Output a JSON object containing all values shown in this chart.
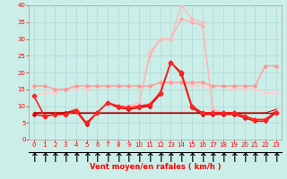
{
  "xlabel": "Vent moyen/en rafales ( km/h )",
  "bg_color": "#cceee8",
  "grid_color": "#b0ddd8",
  "xlim_min": -0.5,
  "xlim_max": 23.5,
  "ylim_min": 0,
  "ylim_max": 40,
  "yticks": [
    0,
    5,
    10,
    15,
    20,
    25,
    30,
    35,
    40
  ],
  "xticks": [
    0,
    1,
    2,
    3,
    4,
    5,
    6,
    7,
    8,
    9,
    10,
    11,
    12,
    13,
    14,
    15,
    16,
    17,
    18,
    19,
    20,
    21,
    22,
    23
  ],
  "series": [
    {
      "y": [
        8,
        8,
        8,
        8,
        9,
        5,
        8,
        11,
        10,
        10,
        11,
        26,
        30,
        30,
        40,
        36,
        35,
        9,
        8,
        8,
        7,
        6,
        6,
        9
      ],
      "color": "#ffbbbb",
      "linewidth": 1.0,
      "marker": "D",
      "markersize": 2.0,
      "zorder": 3
    },
    {
      "y": [
        8,
        8,
        8,
        8,
        9,
        5,
        8,
        11,
        10,
        10,
        11,
        25,
        30,
        30,
        36,
        35,
        34,
        9,
        8,
        8,
        7,
        6,
        6,
        9
      ],
      "color": "#ffaaaa",
      "linewidth": 0.9,
      "marker": "D",
      "markersize": 1.8,
      "zorder": 2
    },
    {
      "y": [
        16,
        16,
        15,
        15,
        16,
        16,
        16,
        16,
        16,
        16,
        16,
        16,
        17,
        17,
        17,
        17,
        17,
        16,
        16,
        16,
        16,
        16,
        22,
        22
      ],
      "color": "#ff9999",
      "linewidth": 1.0,
      "marker": "D",
      "markersize": 2.0,
      "zorder": 4
    },
    {
      "y": [
        13,
        14,
        14,
        15,
        15,
        15,
        16,
        16,
        16,
        16,
        16,
        16,
        17,
        17,
        17,
        16,
        16,
        16,
        16,
        15,
        15,
        15,
        14,
        14
      ],
      "color": "#ffcccc",
      "linewidth": 0.9,
      "marker": "D",
      "markersize": 1.8,
      "zorder": 3
    },
    {
      "y": [
        13,
        7,
        7.5,
        7.5,
        8.5,
        5,
        8,
        11,
        10,
        9.5,
        10,
        10.5,
        14,
        23,
        20,
        10,
        8,
        8,
        8,
        8,
        7,
        6,
        6,
        8
      ],
      "color": "#ff2222",
      "linewidth": 1.2,
      "marker": "D",
      "markersize": 2.5,
      "zorder": 6
    },
    {
      "y": [
        7.5,
        7,
        7.5,
        8,
        8.5,
        4.5,
        8,
        11,
        9.5,
        9,
        9.5,
        10,
        13.5,
        23,
        19.5,
        9.5,
        7.5,
        7.5,
        7.5,
        7.5,
        6.5,
        5.5,
        5.5,
        8
      ],
      "color": "#dd0000",
      "linewidth": 1.0,
      "marker": "D",
      "markersize": 2.0,
      "zorder": 5
    },
    {
      "y": [
        8,
        8,
        8,
        8,
        8,
        8,
        8,
        8,
        8,
        8,
        8,
        8,
        8,
        8,
        8,
        8,
        8,
        8,
        8,
        8,
        8,
        8,
        8,
        8
      ],
      "color": "#990000",
      "linewidth": 1.0,
      "marker": null,
      "markersize": 0,
      "zorder": 5
    },
    {
      "y": [
        8,
        8,
        8,
        8,
        9,
        5,
        8,
        11,
        10,
        9.5,
        10,
        10,
        14,
        23,
        20,
        10,
        8,
        8,
        8,
        8,
        7,
        6,
        6,
        8.5
      ],
      "color": "#cc2222",
      "linewidth": 0.8,
      "marker": null,
      "markersize": 0,
      "zorder": 4
    },
    {
      "y": [
        8,
        8,
        8,
        8,
        8,
        8,
        8,
        8,
        8,
        8,
        8,
        8,
        8,
        8,
        8,
        8,
        8,
        8,
        8,
        8,
        8,
        8,
        8,
        9
      ],
      "color": "#bb0000",
      "linewidth": 0.7,
      "marker": null,
      "markersize": 0,
      "zorder": 3
    }
  ],
  "arrow_color": "#ff0000",
  "xlabel_color": "#ff0000",
  "tick_color": "#ff0000",
  "axis_color": "#aaaaaa"
}
